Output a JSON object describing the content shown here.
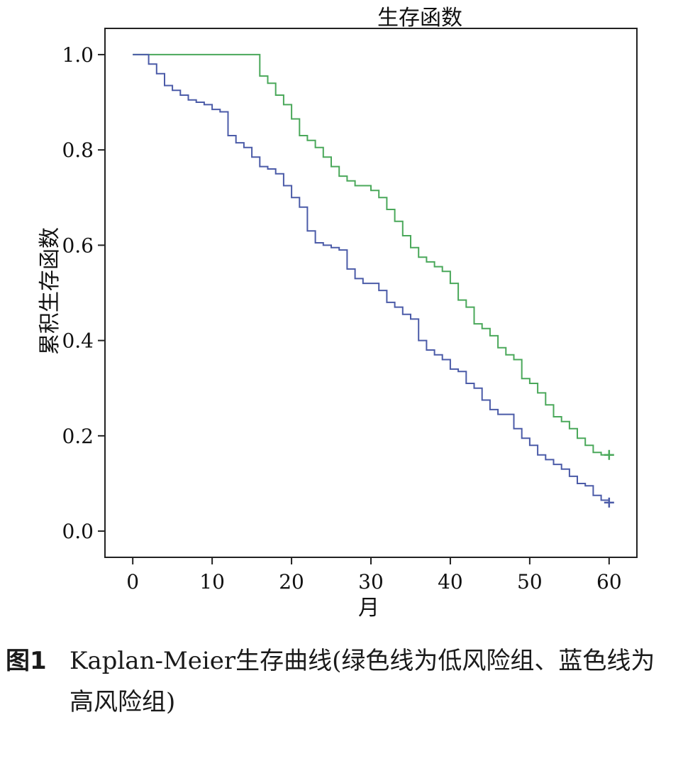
{
  "caption": {
    "number": "图1",
    "line1": "Kaplan-Meier生存曲线(绿色线为低风险组、蓝色线为",
    "line2": "高风险组)"
  },
  "chart_data": {
    "type": "line",
    "title": "生存函数",
    "xlabel": "月",
    "ylabel": "累积生存函数",
    "xlim": [
      -3.5,
      63.5
    ],
    "ylim": [
      -0.055,
      1.055
    ],
    "xticks": [
      "0",
      "10",
      "20",
      "30",
      "40",
      "50",
      "60"
    ],
    "xtick_values": [
      0,
      10,
      20,
      30,
      40,
      50,
      60
    ],
    "yticks": [
      "0.0",
      "0.2",
      "0.4",
      "0.6",
      "0.8",
      "1.0"
    ],
    "ytick_values": [
      0,
      0.2,
      0.4,
      0.6,
      0.8,
      1.0
    ],
    "grid": false,
    "series": [
      {
        "color": "#4aa85a",
        "step": true,
        "censor_mark": [
          60,
          0.16
        ],
        "x": [
          0,
          16,
          17,
          18,
          19,
          20,
          21,
          22,
          23,
          24,
          25,
          26,
          27,
          28,
          29,
          30,
          31,
          32,
          33,
          34,
          35,
          36,
          37,
          38,
          39,
          40,
          41,
          42,
          43,
          44,
          45,
          46,
          47,
          48,
          49,
          50,
          51,
          52,
          53,
          54,
          55,
          56,
          57,
          58,
          59,
          60
        ],
        "y": [
          1.0,
          0.955,
          0.94,
          0.915,
          0.895,
          0.865,
          0.83,
          0.82,
          0.805,
          0.785,
          0.765,
          0.745,
          0.735,
          0.725,
          0.725,
          0.715,
          0.7,
          0.675,
          0.65,
          0.62,
          0.595,
          0.575,
          0.565,
          0.555,
          0.545,
          0.52,
          0.485,
          0.47,
          0.435,
          0.425,
          0.41,
          0.385,
          0.37,
          0.36,
          0.32,
          0.31,
          0.29,
          0.265,
          0.24,
          0.23,
          0.215,
          0.195,
          0.18,
          0.165,
          0.16,
          0.16
        ]
      },
      {
        "color": "#4b5ba8",
        "step": true,
        "censor_mark": [
          60,
          0.06
        ],
        "x": [
          0,
          2,
          3,
          4,
          5,
          6,
          7,
          8,
          9,
          10,
          11,
          12,
          13,
          14,
          15,
          16,
          17,
          18,
          19,
          20,
          21,
          22,
          23,
          24,
          25,
          26,
          27,
          28,
          29,
          30,
          31,
          32,
          33,
          34,
          35,
          36,
          37,
          38,
          39,
          40,
          41,
          42,
          43,
          44,
          45,
          46,
          47,
          48,
          49,
          50,
          51,
          52,
          53,
          54,
          55,
          56,
          57,
          58,
          59,
          60
        ],
        "y": [
          1.0,
          0.98,
          0.96,
          0.935,
          0.925,
          0.915,
          0.905,
          0.9,
          0.895,
          0.885,
          0.88,
          0.83,
          0.815,
          0.805,
          0.785,
          0.765,
          0.76,
          0.75,
          0.725,
          0.7,
          0.68,
          0.63,
          0.605,
          0.6,
          0.595,
          0.59,
          0.55,
          0.53,
          0.52,
          0.52,
          0.505,
          0.48,
          0.47,
          0.455,
          0.445,
          0.4,
          0.38,
          0.37,
          0.36,
          0.34,
          0.335,
          0.31,
          0.3,
          0.275,
          0.255,
          0.245,
          0.245,
          0.215,
          0.195,
          0.18,
          0.16,
          0.15,
          0.14,
          0.13,
          0.115,
          0.1,
          0.095,
          0.075,
          0.065,
          0.06
        ]
      }
    ]
  }
}
